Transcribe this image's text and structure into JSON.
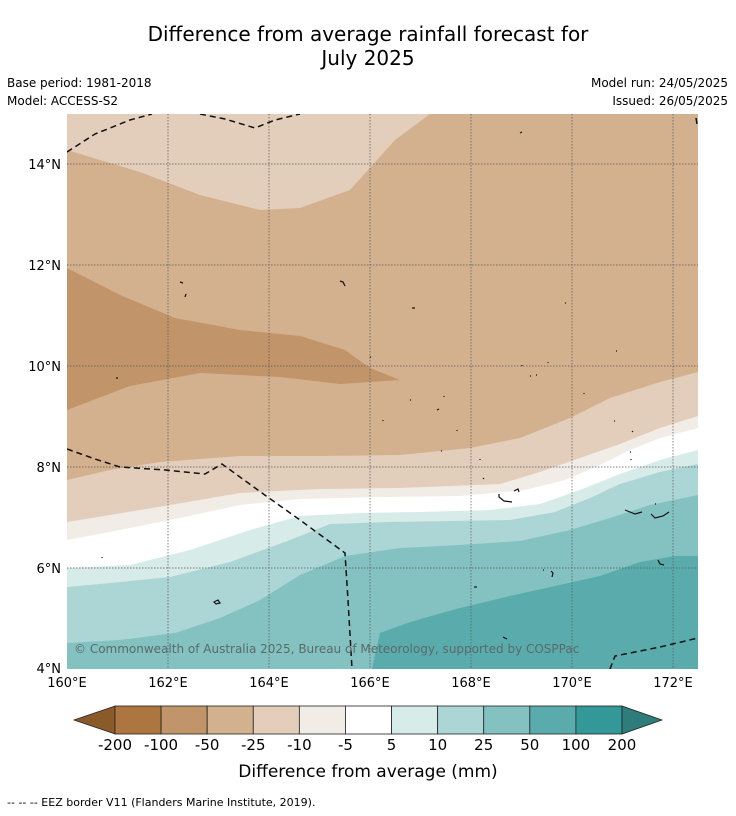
{
  "title_line1": "Difference from average rainfall forecast for",
  "title_line2": "July 2025",
  "base_period": "Base period: 1981-2018",
  "model": "Model: ACCESS-S2",
  "model_run": "Model run: 24/05/2025",
  "issued": "Issued: 26/05/2025",
  "copyright": "© Commonwealth of Australia 2025, Bureau of Meteorology, supported by COSPPac",
  "footer": "--  --  -- EEZ border V11 (Flanders Marine Institute, 2019).",
  "colorbar": {
    "title": "Difference from average (mm)",
    "ticks": [
      "-200",
      "-100",
      "-50",
      "-25",
      "-10",
      "-5",
      "5",
      "10",
      "25",
      "50",
      "100",
      "200"
    ],
    "colors": [
      "#8a5a2b",
      "#ad7640",
      "#c19469",
      "#d3b18e",
      "#e3cebb",
      "#f2ece6",
      "#ffffff",
      "#d7ebe8",
      "#acd6d6",
      "#84c1c1",
      "#5aacac",
      "#339898",
      "#2e7c7b"
    ]
  },
  "map": {
    "x_tick_labels": [
      "160°E",
      "162°E",
      "164°E",
      "166°E",
      "168°E",
      "170°E",
      "172°E"
    ],
    "y_tick_labels": [
      "4°N",
      "6°N",
      "8°N",
      "10°N",
      "12°N",
      "14°N"
    ],
    "lon_range": [
      160,
      172.5
    ],
    "lat_range": [
      4,
      15
    ],
    "gridlines": true
  }
}
